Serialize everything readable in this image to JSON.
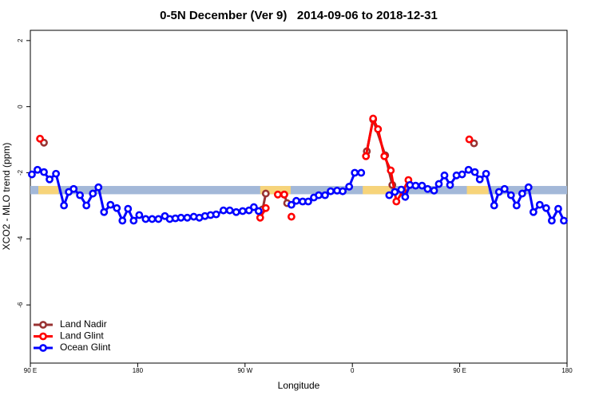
{
  "chart_data": {
    "type": "line",
    "title": "0-5N December (Ver 9)   2014-09-06 to 2018-12-31",
    "x_label": "Longitude",
    "y_label": "XCO2 - MLO trend (ppm)",
    "xlim": [
      90,
      540
    ],
    "ylim": [
      -7.76,
      2.31
    ],
    "xticks": [
      {
        "value": 90,
        "label": "90 E"
      },
      {
        "value": 180,
        "label": "180"
      },
      {
        "value": 270,
        "label": "90 W"
      },
      {
        "value": 360,
        "label": "0"
      },
      {
        "value": 450,
        "label": "90 E"
      },
      {
        "value": 540,
        "label": "180"
      }
    ],
    "yticks": [
      2,
      0,
      -2,
      -4,
      -6
    ],
    "legend": "bottomleft",
    "band_range": [
      -2.65,
      -2.4
    ],
    "band_color": "#a3b8d8",
    "land_color": "#f7d47a",
    "land_spans": [
      [
        96.7,
        113.5
      ],
      [
        282.7,
        308.3
      ],
      [
        368.7,
        392.2
      ],
      [
        456,
        474
      ]
    ],
    "series": [
      {
        "name": "Land Nadir",
        "color": "#993333",
        "x": [
          101.4,
          null,
          284.7,
          287.4,
          null,
          302.9,
          305.3,
          null,
          372.1,
          377.4,
          387.5,
          393.5,
          null,
          462
        ],
        "values": [
          -1.09,
          null,
          -3.11,
          -2.63,
          null,
          -2.66,
          -2.92,
          null,
          -1.35,
          -0.39,
          -1.47,
          -2.37,
          null,
          -1.11
        ]
      },
      {
        "name": "Land Glint",
        "color": "#ff0000",
        "x": [
          98.1,
          null,
          282.7,
          287.4,
          null,
          297.5,
          302.9,
          null,
          308.9,
          null,
          371.4,
          377.4,
          381.5,
          386.8,
          392.2,
          396.9,
          402.3,
          407.0,
          null,
          458.0
        ],
        "values": [
          -0.97,
          null,
          -3.36,
          -3.07,
          null,
          -2.66,
          -2.66,
          null,
          -3.33,
          null,
          -1.5,
          -0.36,
          -0.68,
          -1.5,
          -1.93,
          -2.87,
          -2.56,
          -2.22,
          null,
          -0.99
        ]
      },
      {
        "name": "Ocean Glint",
        "color": "#0000ff",
        "x": [
          91.3,
          96.0,
          101.4,
          106.1,
          111.5,
          118.2,
          122.2,
          126.3,
          131.6,
          137.0,
          142.4,
          147.1,
          151.8,
          157.2,
          162.5,
          167.2,
          171.9,
          176.6,
          181.3,
          186.7,
          192.1,
          197.4,
          202.8,
          206.9,
          211.6,
          216.3,
          221.6,
          227.0,
          231.7,
          236.4,
          241.1,
          245.8,
          251.9,
          257.2,
          262.6,
          268.0,
          273.3,
          277.4,
          281.4,
          null,
          308.9,
          313.0,
          318.3,
          323.0,
          327.7,
          331.8,
          337.1,
          341.8,
          347.2,
          351.9,
          357.3,
          362.0,
          367.4,
          null,
          390.9,
          395.6,
          401.0,
          404.3,
          408.3,
          413.0,
          418.4,
          423.1,
          428.5,
          432.5,
          437.2,
          441.9,
          447.3,
          452.0,
          457.4,
          462.7,
          466.8,
          472.1,
          478.9,
          482.9,
          487.6,
          493.0,
          497.7,
          502.4,
          507.7,
          511.8,
          517.1,
          522.5,
          527.2,
          532.6,
          537.3
        ],
        "values": [
          -2.05,
          -1.91,
          -1.98,
          -2.2,
          -2.03,
          -2.99,
          -2.58,
          -2.49,
          -2.68,
          -2.99,
          -2.63,
          -2.44,
          -3.19,
          -2.97,
          -3.07,
          -3.45,
          -3.09,
          -3.45,
          -3.28,
          -3.4,
          -3.4,
          -3.4,
          -3.31,
          -3.4,
          -3.38,
          -3.36,
          -3.36,
          -3.33,
          -3.36,
          -3.31,
          -3.28,
          -3.26,
          -3.14,
          -3.14,
          -3.19,
          -3.16,
          -3.14,
          -3.04,
          -3.16,
          null,
          -2.97,
          -2.85,
          -2.87,
          -2.87,
          -2.75,
          -2.68,
          -2.68,
          -2.56,
          -2.54,
          -2.56,
          -2.42,
          -2.0,
          -2.0,
          null,
          -2.68,
          -2.58,
          -2.51,
          -2.73,
          -2.37,
          -2.39,
          -2.39,
          -2.49,
          -2.54,
          -2.34,
          -2.08,
          -2.37,
          -2.08,
          -2.05,
          -1.91,
          -1.98,
          -2.2,
          -2.03,
          -2.99,
          -2.58,
          -2.49,
          -2.68,
          -2.99,
          -2.63,
          -2.44,
          -3.19,
          -2.97,
          -3.07,
          -3.45,
          -3.09,
          -3.45
        ]
      }
    ]
  }
}
